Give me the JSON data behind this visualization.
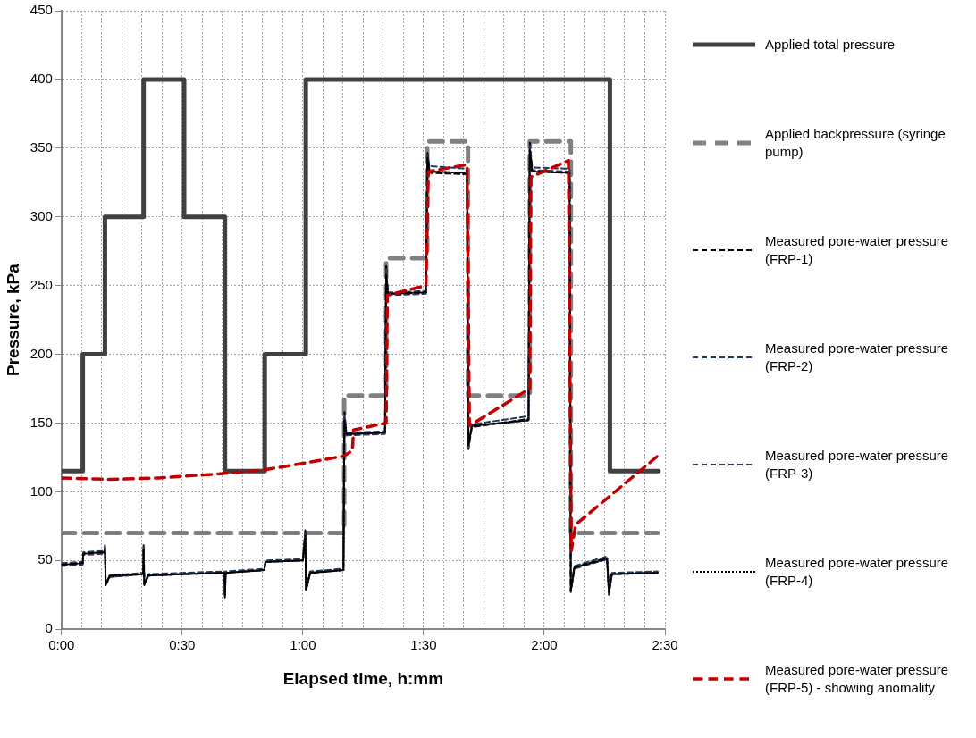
{
  "chart_data": {
    "type": "line",
    "xlabel": "Elapsed time, h:mm",
    "ylabel": "Pressure, kPa",
    "xlim": [
      0,
      2.5
    ],
    "ylim": [
      0,
      450
    ],
    "xticks": [
      {
        "value": 0,
        "label": "0:00"
      },
      {
        "value": 0.0833,
        "label": null
      },
      {
        "value": 0.1667,
        "label": null
      },
      {
        "value": 0.25,
        "label": null
      },
      {
        "value": 0.3333,
        "label": null
      },
      {
        "value": 0.4167,
        "label": null
      },
      {
        "value": 0.5,
        "label": "0:30"
      },
      {
        "value": 0.5833,
        "label": null
      },
      {
        "value": 0.6667,
        "label": null
      },
      {
        "value": 0.75,
        "label": null
      },
      {
        "value": 0.8333,
        "label": null
      },
      {
        "value": 0.9167,
        "label": null
      },
      {
        "value": 1,
        "label": "1:00"
      },
      {
        "value": 1.0833,
        "label": null
      },
      {
        "value": 1.1667,
        "label": null
      },
      {
        "value": 1.25,
        "label": null
      },
      {
        "value": 1.3333,
        "label": null
      },
      {
        "value": 1.4167,
        "label": null
      },
      {
        "value": 1.5,
        "label": "1:30"
      },
      {
        "value": 1.5833,
        "label": null
      },
      {
        "value": 1.6667,
        "label": null
      },
      {
        "value": 1.75,
        "label": null
      },
      {
        "value": 1.8333,
        "label": null
      },
      {
        "value": 1.9167,
        "label": null
      },
      {
        "value": 2,
        "label": "2:00"
      },
      {
        "value": 2.0833,
        "label": null
      },
      {
        "value": 2.1667,
        "label": null
      },
      {
        "value": 2.25,
        "label": null
      },
      {
        "value": 2.3333,
        "label": null
      },
      {
        "value": 2.4167,
        "label": null
      },
      {
        "value": 2.5,
        "label": "2:30"
      }
    ],
    "yticks": [
      0,
      50,
      100,
      150,
      200,
      250,
      300,
      350,
      400,
      450
    ],
    "grid": true,
    "legend": "right",
    "marker": "none",
    "series": [
      {
        "name": "Applied total pressure",
        "color": "#404040",
        "line_style": "solid",
        "x": [
          0,
          0.088,
          0.088,
          0.18,
          0.18,
          0.34,
          0.34,
          0.508,
          0.508,
          0.677,
          0.677,
          0.842,
          0.842,
          1.012,
          1.012,
          2.272,
          2.272,
          2.473
        ],
        "values": [
          115,
          115,
          200,
          200,
          300,
          300,
          400,
          400,
          300,
          300,
          115,
          115,
          200,
          200,
          400,
          400,
          115,
          115
        ]
      },
      {
        "name": "Applied backpressure (syringe pump)",
        "color": "#808080",
        "line_style": "dashed",
        "x": [
          0,
          1.171,
          1.171,
          1.345,
          1.345,
          1.515,
          1.515,
          1.684,
          1.684,
          1.94,
          1.94,
          2.11,
          2.11,
          2.47
        ],
        "values": [
          70,
          70,
          170,
          170,
          270,
          270,
          355,
          355,
          170,
          170,
          355,
          355,
          70,
          70
        ]
      },
      {
        "name": "Measured pore-water pressure (FRP-1)",
        "color": "#000000",
        "line_style": "dashed",
        "x": [
          0,
          0.088,
          0.09,
          0.178,
          0.18,
          0.183,
          0.2,
          0.338,
          0.34,
          0.343,
          0.36,
          0.5,
          0.675,
          0.677,
          0.68,
          0.84,
          0.845,
          1.0,
          1.01,
          1.013,
          1.03,
          1.168,
          1.172,
          1.18,
          1.34,
          1.345,
          1.352,
          1.51,
          1.516,
          1.525,
          1.68,
          1.686,
          1.7,
          1.935,
          1.94,
          1.95,
          2.105,
          2.11,
          2.125,
          2.26,
          2.268,
          2.28,
          2.47
        ],
        "values": [
          47,
          48,
          55,
          56,
          61,
          32,
          38,
          40,
          61,
          32,
          39,
          40,
          41,
          23,
          41,
          43,
          49,
          50,
          73,
          28,
          41,
          43,
          158,
          142,
          143,
          265,
          244,
          245,
          347,
          332,
          331,
          131,
          147,
          153,
          354,
          333,
          332,
          27,
          45,
          52,
          25,
          40,
          41
        ]
      },
      {
        "name": "Measured pore-water pressure (FRP-2)",
        "color": "#1f3864",
        "line_style": "dashed",
        "x": [
          0,
          0.088,
          0.09,
          0.178,
          0.18,
          0.183,
          0.2,
          0.338,
          0.34,
          0.343,
          0.36,
          0.5,
          0.675,
          0.677,
          0.68,
          0.84,
          0.845,
          1.0,
          1.01,
          1.013,
          1.03,
          1.168,
          1.172,
          1.18,
          1.34,
          1.345,
          1.352,
          1.51,
          1.516,
          1.525,
          1.68,
          1.686,
          1.7,
          1.935,
          1.94,
          1.95,
          2.105,
          2.11,
          2.125,
          2.26,
          2.268,
          2.28,
          2.47
        ],
        "values": [
          48,
          49,
          56,
          57,
          60,
          33,
          39,
          41,
          60,
          33,
          40,
          41,
          42,
          24,
          42,
          44,
          50,
          51,
          70,
          29,
          42,
          44,
          155,
          143,
          144,
          262,
          245,
          246,
          345,
          337,
          335,
          133,
          149,
          155,
          352,
          336,
          335,
          28,
          46,
          53,
          26,
          41,
          42
        ]
      },
      {
        "name": "Measured pore-water pressure (FRP-3)",
        "color": "#403152",
        "line_style": "dashed",
        "x": [
          0,
          0.088,
          0.09,
          0.178,
          0.18,
          0.183,
          0.2,
          0.338,
          0.34,
          0.343,
          0.36,
          0.5,
          0.675,
          0.677,
          0.68,
          0.84,
          0.845,
          1.0,
          1.01,
          1.013,
          1.03,
          1.168,
          1.172,
          1.18,
          1.34,
          1.345,
          1.352,
          1.51,
          1.516,
          1.525,
          1.68,
          1.686,
          1.7,
          1.935,
          1.94,
          1.95,
          2.105,
          2.11,
          2.125,
          2.26,
          2.268,
          2.28,
          2.47
        ],
        "values": [
          46,
          47,
          54,
          55,
          59,
          33,
          38,
          40,
          59,
          33,
          39,
          40,
          41,
          25,
          41,
          43,
          49,
          50,
          70,
          29,
          41,
          43,
          154,
          141,
          142,
          260,
          243,
          244,
          344,
          333,
          332,
          132,
          148,
          152,
          350,
          334,
          333,
          28,
          44,
          51,
          26,
          40,
          41
        ]
      },
      {
        "name": "Measured pore-water pressure (FRP-4)",
        "color": "#000000",
        "line_style": "dotted",
        "x": [
          0,
          0.088,
          0.09,
          0.178,
          0.18,
          0.183,
          0.2,
          0.338,
          0.34,
          0.343,
          0.36,
          0.5,
          0.675,
          0.677,
          0.68,
          0.84,
          0.845,
          1.0,
          1.01,
          1.013,
          1.03,
          1.168,
          1.172,
          1.18,
          1.34,
          1.345,
          1.352,
          1.51,
          1.516,
          1.525,
          1.68,
          1.686,
          1.7,
          1.935,
          1.94,
          1.95,
          2.105,
          2.11,
          2.125,
          2.26,
          2.268,
          2.28,
          2.47
        ],
        "values": [
          47,
          48,
          55,
          56,
          58,
          33,
          39,
          40,
          58,
          33,
          39,
          40,
          41,
          25,
          41,
          43,
          49,
          50,
          68,
          29,
          41,
          43,
          152,
          142,
          143,
          258,
          244,
          245,
          343,
          333,
          332,
          134,
          148,
          152,
          349,
          333,
          332,
          28,
          45,
          51,
          27,
          40,
          41
        ]
      },
      {
        "name": "Measured pore-water pressure (FRP-5) - showing anomality",
        "color": "#c00000",
        "line_style": "dashed",
        "x": [
          0,
          0.2,
          0.4,
          0.65,
          0.842,
          1.012,
          1.17,
          1.205,
          1.21,
          1.345,
          1.35,
          1.51,
          1.52,
          1.68,
          1.69,
          1.94,
          1.945,
          2.1,
          2.112,
          2.13,
          2.47
        ],
        "values": [
          110,
          109,
          110,
          113,
          116,
          121,
          126,
          130,
          145,
          150,
          243,
          250,
          333,
          338,
          148,
          175,
          329,
          341,
          57,
          76,
          126
        ]
      }
    ]
  }
}
